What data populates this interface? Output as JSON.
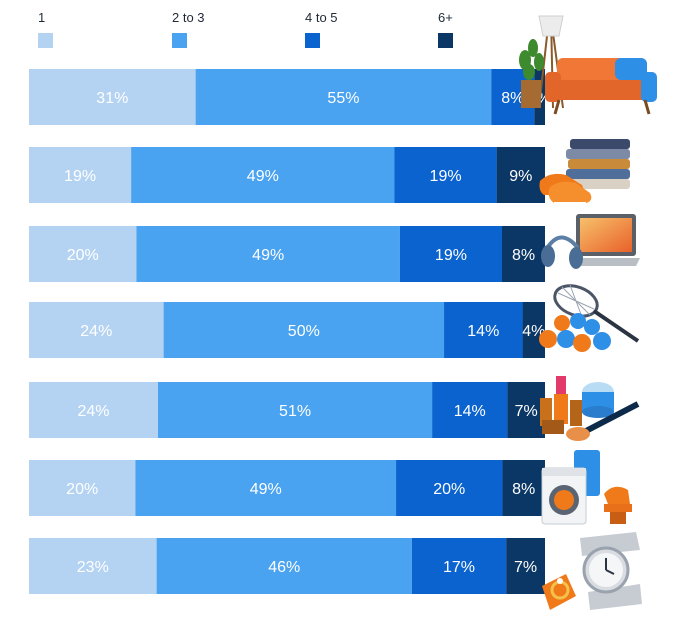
{
  "chart_data": {
    "type": "bar",
    "orientation": "horizontal",
    "stacked": true,
    "categories": [
      "Furniture",
      "Apparel",
      "Electronics",
      "Sporting goods",
      "Beauty",
      "Home appliances",
      "Jewelry and watches"
    ],
    "series": [
      {
        "name": "1",
        "color": "#b4d3f2",
        "values": [
          31,
          19,
          20,
          24,
          24,
          20,
          23
        ]
      },
      {
        "name": "2 to 3",
        "color": "#4aa3f0",
        "values": [
          55,
          49,
          49,
          50,
          51,
          49,
          46
        ]
      },
      {
        "name": "4 to 5",
        "color": "#0a63cf",
        "values": [
          8,
          19,
          19,
          14,
          14,
          20,
          17
        ]
      },
      {
        "name": "6+",
        "color": "#0b3766",
        "values": [
          2,
          9,
          8,
          4,
          7,
          8,
          7
        ]
      }
    ],
    "value_suffix": "%",
    "legend_position": "top",
    "grid": false
  },
  "category_icons": [
    "sofa-icon",
    "clothes-shoes-icon",
    "laptop-headphones-icon",
    "tennis-icon",
    "cosmetics-icon",
    "washer-mixer-icon",
    "watch-ring-icon"
  ]
}
